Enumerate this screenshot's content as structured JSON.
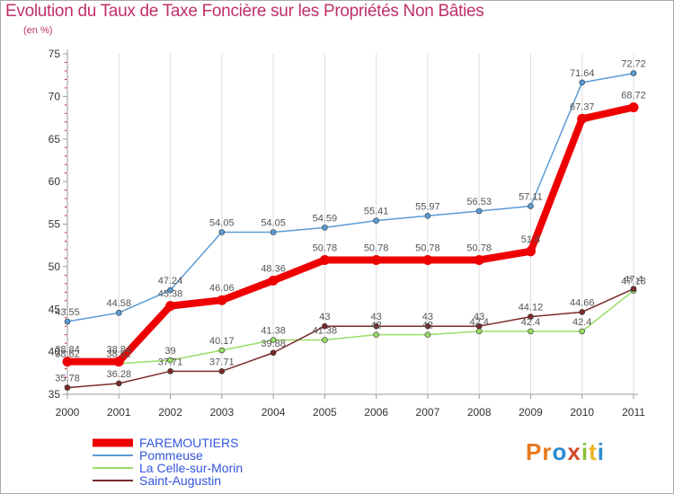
{
  "title": "Evolution du Taux de Taxe Foncière sur les Propriétés Non Bâties",
  "subtitle": "(en %)",
  "logo": {
    "text": "Proxiti",
    "letters": [
      "P",
      "r",
      "o",
      "x",
      "i",
      "t",
      "i"
    ],
    "colors": [
      "#e8791e",
      "#e8791e",
      "#2b8bd0",
      "#d04a2a",
      "#8bbf3a",
      "#e8b51e",
      "#2b8bd0"
    ]
  },
  "chart_data": {
    "type": "line",
    "title": "Evolution du Taux de Taxe Foncière sur les Propriétés Non Bâties",
    "ylabel": "(en %)",
    "x": [
      "2000",
      "2001",
      "2002",
      "2003",
      "2004",
      "2005",
      "2006",
      "2007",
      "2008",
      "2009",
      "2010",
      "2011"
    ],
    "ylim": [
      35,
      75
    ],
    "yticks": [
      35,
      40,
      45,
      50,
      55,
      60,
      65,
      70,
      75
    ],
    "grid": "vertical",
    "legend_position": "bottom-left",
    "series": [
      {
        "name": "FAREMOUTIERS",
        "color": "#ee0000",
        "values": [
          38.84,
          38.84,
          45.38,
          46.06,
          48.36,
          50.78,
          50.78,
          50.78,
          50.78,
          51.8,
          67.37,
          68.72
        ],
        "labels": [
          "38.84",
          "38.84",
          "45.38",
          "46.06",
          "48.36",
          "50.78",
          "50.78",
          "50.78",
          "50.78",
          "51.8",
          "67.37",
          "68.72"
        ],
        "primary": true
      },
      {
        "name": "Pommeuse",
        "color": "#5b9bd5",
        "values": [
          43.55,
          44.58,
          47.24,
          54.05,
          54.05,
          54.59,
          55.41,
          55.97,
          56.53,
          57.11,
          71.64,
          72.72
        ],
        "labels": [
          "43.55",
          "44.58",
          "47.24",
          "54.05",
          "54.05",
          "54.59",
          "55.41",
          "55.97",
          "56.53",
          "57.11",
          "71.64",
          "72.72"
        ]
      },
      {
        "name": "La Celle-sur-Morin",
        "color": "#99dd66",
        "values": [
          38.62,
          38.62,
          39,
          40.17,
          41.38,
          41.38,
          42,
          42,
          42.4,
          42.4,
          42.4,
          47.18
        ],
        "labels": [
          "38.62",
          "38.62",
          "39",
          "40.17",
          "41.38",
          "41.38",
          "42",
          "42",
          "42.4",
          "42.4",
          "42.4",
          "47.18"
        ]
      },
      {
        "name": "Saint-Augustin",
        "color": "#7a2a2a",
        "values": [
          35.78,
          36.28,
          37.71,
          37.71,
          39.88,
          43,
          43,
          43,
          43,
          44.12,
          44.66,
          47.4
        ],
        "labels": [
          "35.78",
          "36.28",
          "37.71",
          "37.71",
          "39.88",
          "43",
          "43",
          "43",
          "43",
          "44.12",
          "44.66",
          "47.4"
        ]
      }
    ]
  }
}
